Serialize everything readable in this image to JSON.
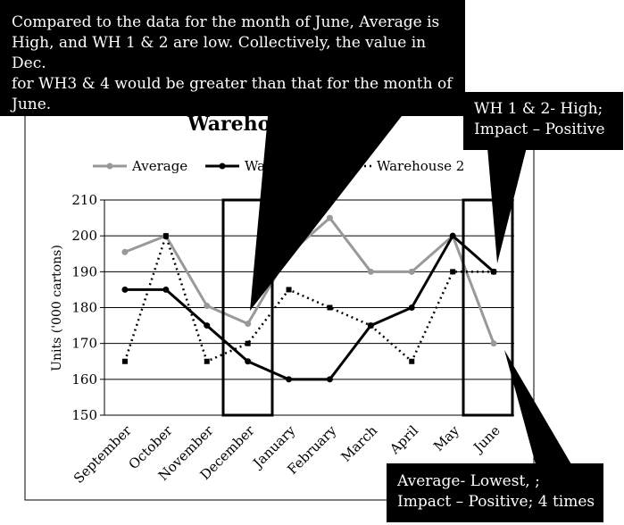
{
  "chart_data": {
    "type": "line",
    "title": "Warehouse",
    "ylabel": "Units ('000 cartons)",
    "xlabel": "",
    "ylim": [
      150,
      210
    ],
    "yticks": [
      150,
      160,
      170,
      180,
      190,
      200,
      210
    ],
    "grid": true,
    "legend_position": "top",
    "categories": [
      "September",
      "October",
      "November",
      "December",
      "January",
      "February",
      "March",
      "April",
      "May",
      "June"
    ],
    "series": [
      {
        "name": "Average",
        "color": "#999999",
        "style": "solid",
        "values": [
          195.5,
          200,
          180.5,
          175.5,
          195,
          205,
          190,
          190,
          200,
          170
        ]
      },
      {
        "name": "Wa",
        "color": "#000000",
        "style": "solid",
        "values": [
          185,
          185,
          175,
          165,
          160,
          160,
          175,
          180,
          200,
          190
        ]
      },
      {
        "name": "Warehouse 2",
        "color": "#000000",
        "style": "dotted",
        "values": [
          165,
          200,
          165,
          170,
          185,
          180,
          175,
          165,
          190,
          190
        ]
      }
    ]
  },
  "callouts": {
    "top_left": {
      "lines": [
        "Compared to the data for the month of June, Average is",
        "High, and WH 1 & 2 are low. Collectively, the value in Dec.",
        "for WH3  & 4 would be greater than that for the month of",
        "June."
      ]
    },
    "top_right": {
      "lines": [
        "WH 1 & 2- High;",
        "Impact – Positive"
      ]
    },
    "bottom_right": {
      "lines": [
        "Average- Lowest, ;",
        "Impact – Positive; 4 times"
      ]
    }
  }
}
